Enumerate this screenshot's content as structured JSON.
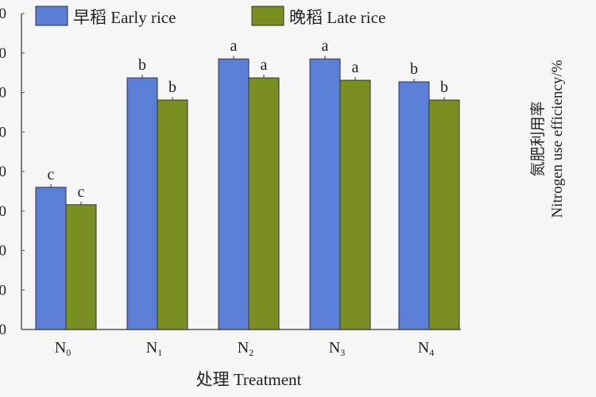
{
  "chart_data": {
    "type": "bar",
    "categories": [
      "N0",
      "N1",
      "N2",
      "N3",
      "N4"
    ],
    "category_subscripts": [
      "0",
      "1",
      "2",
      "3",
      "4"
    ],
    "series": [
      {
        "name": "早稻 Early rice",
        "values": [
          3.6,
          6.37,
          6.85,
          6.85,
          6.27
        ],
        "letters": [
          "c",
          "b",
          "a",
          "a",
          "b"
        ],
        "color": "#5b7fd6"
      },
      {
        "name": "晚稻 Late rice",
        "values": [
          3.16,
          5.81,
          6.37,
          6.31,
          5.81
        ],
        "letters": [
          "c",
          "b",
          "a",
          "a",
          "b"
        ],
        "color": "#7a8f22"
      }
    ],
    "ylim": [
      0,
      8
    ],
    "ytick_labels": [
      "0",
      "0",
      "0",
      "0",
      "0",
      "0",
      "0",
      "0",
      "0"
    ],
    "xlabel": "处理 Treatment",
    "legend_position": "top-left",
    "right_panel_ylabel_cn": "氮肥利用率",
    "right_panel_ylabel_en": "Nitrogen use efficiency/%"
  }
}
